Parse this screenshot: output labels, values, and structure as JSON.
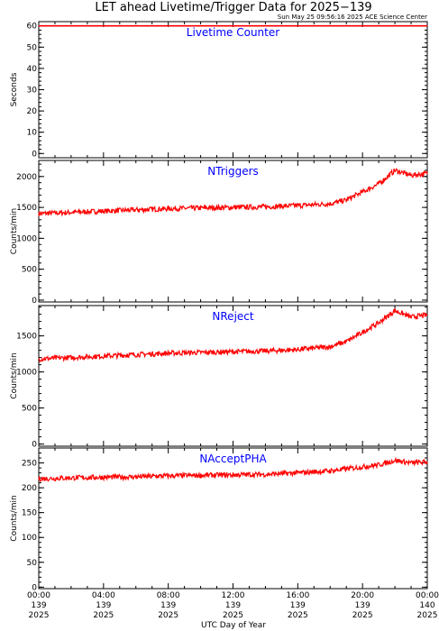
{
  "title": "LET ahead Livetime/Trigger Data for 2025−139",
  "timestamp": "Sun May 25 09:56:16 2025 ACE Science Center",
  "xlabel": "UTC Day of Year",
  "series_color": "#ff0000",
  "title_color": "#0000ff",
  "chart_data": [
    {
      "type": "line",
      "title": "Livetime Counter",
      "ylabel": "Seconds",
      "ylim": [
        -2,
        62
      ],
      "yticks": [
        "0",
        "10",
        "20",
        "30",
        "40",
        "50",
        "60"
      ],
      "x": [
        "00:00",
        "02:00",
        "04:00",
        "06:00",
        "08:00",
        "10:00",
        "12:00",
        "14:00",
        "16:00",
        "18:00",
        "19:00",
        "20:00",
        "21:00",
        "22:00",
        "23:00",
        "24:00"
      ],
      "values": [
        60,
        60,
        60,
        60,
        60,
        60,
        60,
        60,
        60,
        60,
        60,
        60,
        60,
        60,
        60,
        60
      ]
    },
    {
      "type": "line",
      "title": "NTriggers",
      "ylabel": "Counts/min",
      "ylim": [
        -30,
        2260
      ],
      "yticks": [
        "0",
        "500",
        "1000",
        "1500",
        "2000"
      ],
      "x": [
        "00:00",
        "02:00",
        "04:00",
        "06:00",
        "08:00",
        "10:00",
        "12:00",
        "14:00",
        "16:00",
        "18:00",
        "19:00",
        "20:00",
        "21:00",
        "22:00",
        "23:00",
        "24:00"
      ],
      "values": [
        1400,
        1420,
        1440,
        1460,
        1480,
        1490,
        1500,
        1510,
        1530,
        1560,
        1620,
        1750,
        1880,
        2100,
        2020,
        2050
      ]
    },
    {
      "type": "line",
      "title": "NReject",
      "ylabel": "Counts/min",
      "ylim": [
        -30,
        1920
      ],
      "yticks": [
        "0",
        "500",
        "1000",
        "1500"
      ],
      "x": [
        "00:00",
        "02:00",
        "04:00",
        "06:00",
        "08:00",
        "10:00",
        "12:00",
        "14:00",
        "16:00",
        "18:00",
        "19:00",
        "20:00",
        "21:00",
        "22:00",
        "23:00",
        "24:00"
      ],
      "values": [
        1180,
        1200,
        1220,
        1240,
        1260,
        1270,
        1280,
        1290,
        1310,
        1350,
        1420,
        1550,
        1680,
        1850,
        1760,
        1790
      ]
    },
    {
      "type": "line",
      "title": "NAcceptPHA",
      "ylabel": "Counts/min",
      "ylim": [
        -3,
        280
      ],
      "yticks": [
        "0",
        "50",
        "100",
        "150",
        "200",
        "250"
      ],
      "x": [
        "00:00",
        "02:00",
        "04:00",
        "06:00",
        "08:00",
        "10:00",
        "12:00",
        "14:00",
        "16:00",
        "18:00",
        "19:00",
        "20:00",
        "21:00",
        "22:00",
        "23:00",
        "24:00"
      ],
      "values": [
        218,
        220,
        221,
        222,
        224,
        225,
        226,
        227,
        230,
        234,
        238,
        242,
        246,
        255,
        250,
        252
      ]
    }
  ],
  "xticks": [
    {
      "time": "00:00",
      "doy": "139",
      "year": "2025"
    },
    {
      "time": "04:00",
      "doy": "139",
      "year": "2025"
    },
    {
      "time": "08:00",
      "doy": "139",
      "year": "2025"
    },
    {
      "time": "12:00",
      "doy": "139",
      "year": "2025"
    },
    {
      "time": "16:00",
      "doy": "139",
      "year": "2025"
    },
    {
      "time": "20:00",
      "doy": "139",
      "year": "2025"
    },
    {
      "time": "00:00",
      "doy": "140",
      "year": "2025"
    }
  ]
}
